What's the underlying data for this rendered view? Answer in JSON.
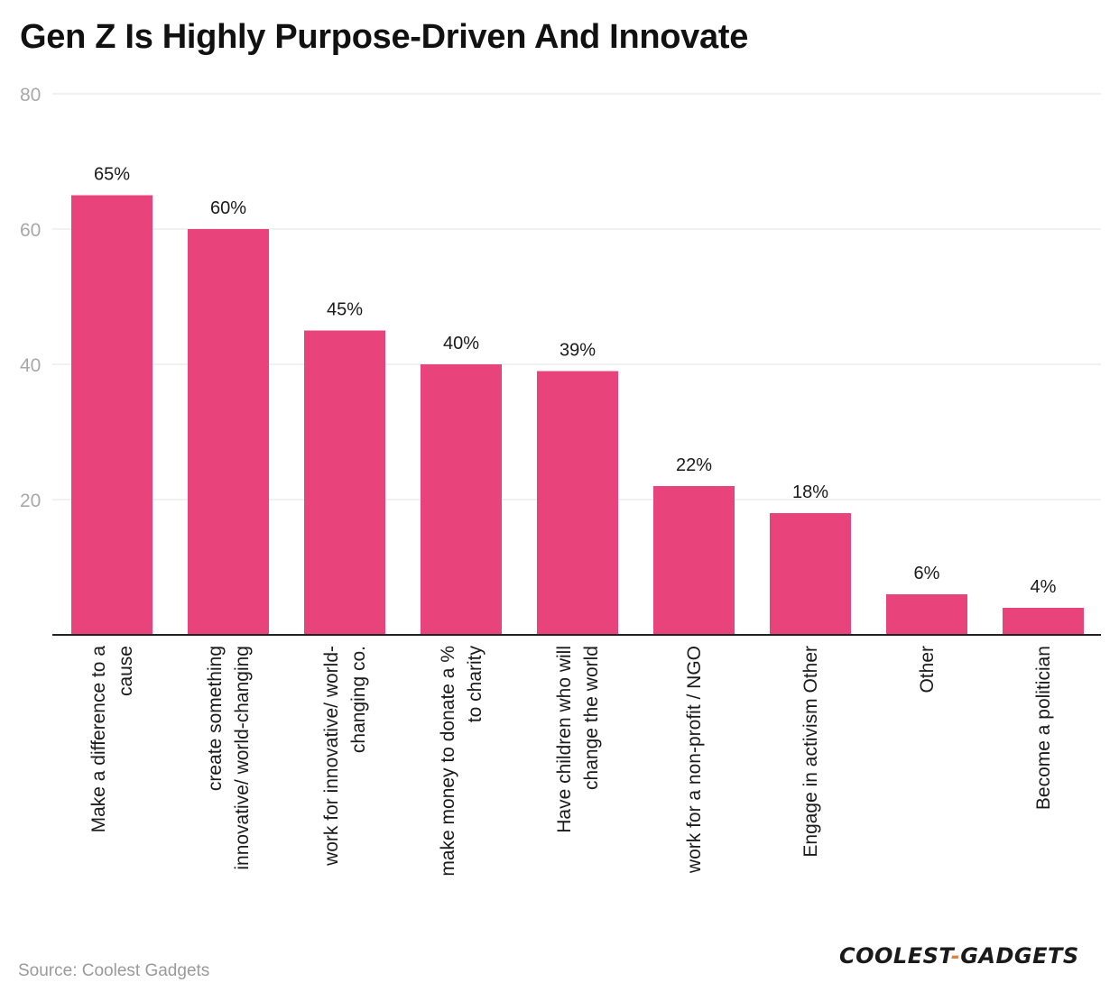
{
  "chart_data": {
    "type": "bar",
    "title": "Gen Z Is Highly Purpose-Driven And Innovate",
    "xlabel": "",
    "ylabel": "",
    "ylim": [
      0,
      80
    ],
    "yticks": [
      20,
      40,
      60,
      80
    ],
    "grid": true,
    "bar_color": "#e8437a",
    "value_suffix": "%",
    "categories": [
      [
        "Make a difference to a",
        "cause"
      ],
      [
        "create something",
        "innovative/ world-changing"
      ],
      [
        "work for innovative/ world-",
        "changing co."
      ],
      [
        "make money to donate a %",
        "to charity"
      ],
      [
        "Have children who will",
        "change the world"
      ],
      [
        "work for a non-profit / NGO"
      ],
      [
        "Engage in activism Other"
      ],
      [
        "Other"
      ],
      [
        "Become a politician"
      ]
    ],
    "values": [
      65,
      60,
      45,
      40,
      39,
      22,
      18,
      6,
      4
    ]
  },
  "footer": {
    "source": "Source: Coolest Gadgets",
    "logo_left": "COOLEST",
    "logo_dash": "-",
    "logo_right": "GADGETS"
  }
}
